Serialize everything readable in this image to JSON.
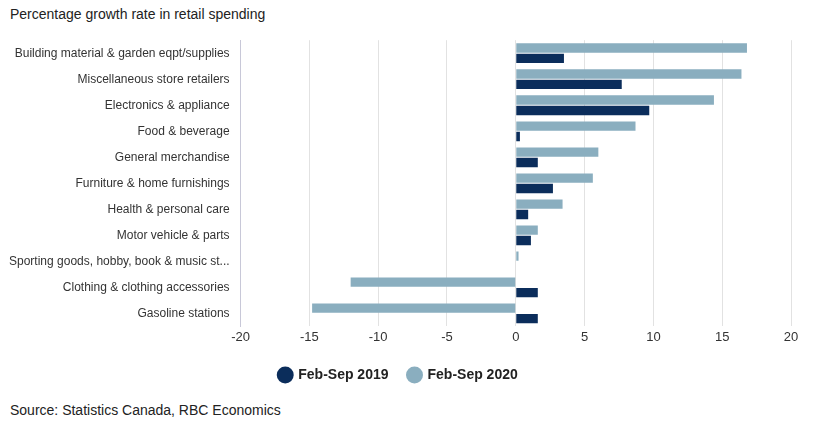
{
  "chart_data": {
    "type": "bar",
    "orientation": "horizontal",
    "title": "Percentage growth rate in retail spending",
    "source": "Source: Statistics Canada, RBC Economics",
    "categories": [
      "Building material & garden eqpt/supplies",
      "Miscellaneous store retailers",
      "Electronics & appliance",
      "Food & beverage",
      "General merchandise",
      "Furniture & home furnishings",
      "Health & personal care",
      "Motor vehicle & parts",
      "Sporting goods, hobby, book & music st...",
      "Clothing & clothing accessories",
      "Gasoline stations"
    ],
    "series": [
      {
        "name": "Feb-Sep 2019",
        "color": "#0b2d5b",
        "values": [
          3.5,
          7.7,
          9.7,
          0.3,
          1.6,
          2.7,
          0.9,
          1.1,
          0,
          1.6,
          1.6
        ]
      },
      {
        "name": "Feb-Sep 2020",
        "color": "#8aaebf",
        "values": [
          16.8,
          16.4,
          14.4,
          8.7,
          6.0,
          5.6,
          3.4,
          1.6,
          0.2,
          -12.0,
          -14.8
        ]
      }
    ],
    "xlim": [
      -20,
      20
    ],
    "xticks": [
      -20,
      -15,
      -10,
      -5,
      0,
      5,
      10,
      15,
      20
    ],
    "grid": true,
    "legend": "bottom"
  }
}
